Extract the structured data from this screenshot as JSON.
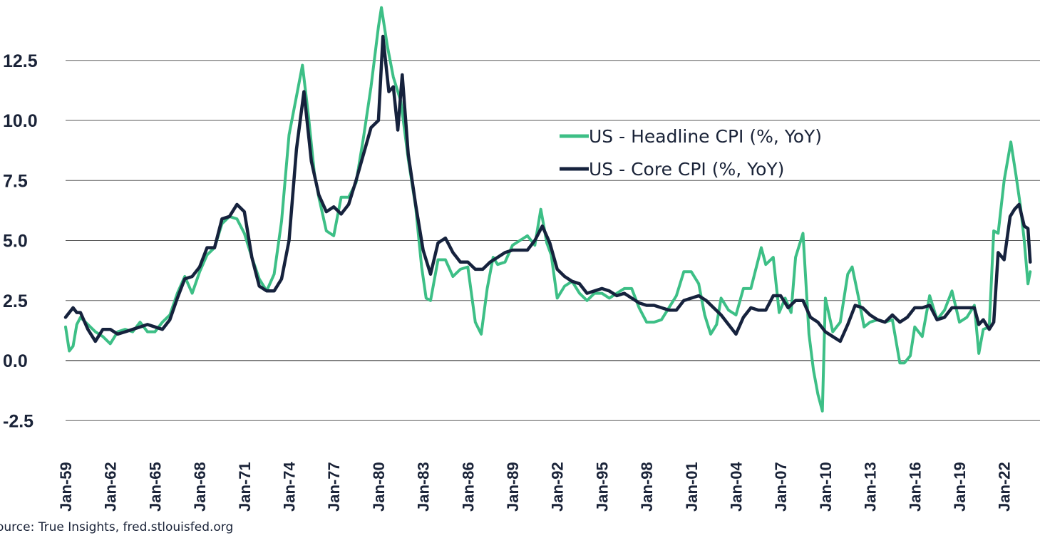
{
  "source_note": "ource: True Insights, fred.stlouisfed.org",
  "colors": {
    "headline": "#3dbf86",
    "core": "#16223d",
    "grid": "#5a5a5a",
    "text": "#1a2338"
  },
  "chart_data": {
    "type": "line",
    "title": "",
    "xlabel": "",
    "ylabel": "",
    "ylim": [
      -2.5,
      14.5
    ],
    "xlim": [
      1959.0,
      2023.75
    ],
    "y_ticks": [
      "-2.5",
      "0.0",
      "2.5",
      "5.0",
      "7.5",
      "10.0",
      "12.5"
    ],
    "y_tick_values": [
      -2.5,
      0,
      2.5,
      5,
      7.5,
      10,
      12.5
    ],
    "x_ticks": [
      "Jan-59",
      "Jan-62",
      "Jan-65",
      "Jan-68",
      "Jan-71",
      "Jan-74",
      "Jan-77",
      "Jan-80",
      "Jan-83",
      "Jan-86",
      "Jan-89",
      "Jan-92",
      "Jan-95",
      "Jan-98",
      "Jan-01",
      "Jan-04",
      "Jan-07",
      "Jan-10",
      "Jan-13",
      "Jan-16",
      "Jan-19",
      "Jan-22"
    ],
    "x_tick_values": [
      1959,
      1962,
      1965,
      1968,
      1971,
      1974,
      1977,
      1980,
      1983,
      1986,
      1989,
      1992,
      1995,
      1998,
      2001,
      2004,
      2007,
      2010,
      2013,
      2016,
      2019,
      2022
    ],
    "grid": "horizontal",
    "legend": "upper-right",
    "series": [
      {
        "name": "US - Headline CPI (%, YoY)",
        "x": [
          1959.0,
          1959.25,
          1959.5,
          1959.75,
          1960.0,
          1960.5,
          1961.0,
          1961.5,
          1962.0,
          1962.5,
          1963.0,
          1963.5,
          1964.0,
          1964.5,
          1965.0,
          1965.5,
          1966.0,
          1966.5,
          1967.0,
          1967.5,
          1968.0,
          1968.5,
          1969.0,
          1969.5,
          1970.0,
          1970.5,
          1971.0,
          1971.5,
          1972.0,
          1972.5,
          1973.0,
          1973.5,
          1974.0,
          1974.5,
          1974.9,
          1975.3,
          1975.7,
          1976.0,
          1976.5,
          1977.0,
          1977.5,
          1978.0,
          1978.5,
          1979.0,
          1979.5,
          1980.0,
          1980.2,
          1980.6,
          1981.0,
          1981.5,
          1982.0,
          1982.5,
          1982.9,
          1983.2,
          1983.5,
          1984.0,
          1984.5,
          1985.0,
          1985.5,
          1986.0,
          1986.5,
          1986.9,
          1987.3,
          1987.7,
          1988.0,
          1988.5,
          1989.0,
          1989.5,
          1990.0,
          1990.5,
          1990.9,
          1991.3,
          1991.6,
          1992.0,
          1992.5,
          1993.0,
          1993.5,
          1994.0,
          1994.5,
          1995.0,
          1995.5,
          1996.0,
          1996.5,
          1997.0,
          1997.5,
          1998.0,
          1998.5,
          1999.0,
          1999.5,
          2000.0,
          2000.5,
          2001.0,
          2001.5,
          2001.9,
          2002.3,
          2002.7,
          2003.0,
          2003.5,
          2004.0,
          2004.5,
          2005.0,
          2005.7,
          2006.0,
          2006.5,
          2006.9,
          2007.3,
          2007.7,
          2008.0,
          2008.5,
          2008.9,
          2009.2,
          2009.5,
          2009.8,
          2010.0,
          2010.5,
          2011.0,
          2011.5,
          2011.8,
          2012.2,
          2012.6,
          2013.0,
          2013.5,
          2014.0,
          2014.5,
          2015.0,
          2015.3,
          2015.7,
          2016.0,
          2016.5,
          2017.0,
          2017.5,
          2018.0,
          2018.5,
          2019.0,
          2019.5,
          2020.0,
          2020.3,
          2020.6,
          2021.0,
          2021.3,
          2021.6,
          2022.0,
          2022.45,
          2022.8,
          2023.1,
          2023.35,
          2023.6,
          2023.75
        ],
        "values": [
          1.4,
          0.4,
          0.6,
          1.5,
          1.8,
          1.5,
          1.2,
          1.0,
          0.7,
          1.2,
          1.3,
          1.2,
          1.6,
          1.2,
          1.2,
          1.6,
          1.9,
          2.8,
          3.5,
          2.8,
          3.7,
          4.4,
          4.7,
          5.7,
          6.0,
          5.9,
          5.3,
          4.3,
          3.4,
          2.9,
          3.6,
          5.8,
          9.4,
          11.0,
          12.3,
          10.2,
          7.8,
          6.8,
          5.4,
          5.2,
          6.8,
          6.8,
          7.4,
          9.3,
          11.4,
          13.9,
          14.7,
          13.1,
          11.8,
          10.8,
          8.4,
          6.4,
          3.9,
          2.6,
          2.5,
          4.2,
          4.2,
          3.5,
          3.8,
          3.9,
          1.6,
          1.1,
          3.0,
          4.3,
          4.0,
          4.1,
          4.8,
          5.0,
          5.2,
          4.8,
          6.3,
          4.9,
          4.4,
          2.6,
          3.1,
          3.3,
          2.8,
          2.5,
          2.8,
          2.8,
          2.6,
          2.8,
          3.0,
          3.0,
          2.2,
          1.6,
          1.6,
          1.7,
          2.2,
          2.7,
          3.7,
          3.7,
          3.2,
          1.9,
          1.1,
          1.5,
          2.6,
          2.1,
          1.9,
          3.0,
          3.0,
          4.7,
          4.0,
          4.3,
          2.0,
          2.6,
          2.0,
          4.3,
          5.3,
          1.1,
          -0.4,
          -1.4,
          -2.1,
          2.6,
          1.2,
          1.6,
          3.6,
          3.9,
          2.7,
          1.4,
          1.6,
          1.7,
          1.6,
          1.7,
          -0.1,
          -0.1,
          0.2,
          1.4,
          1.0,
          2.7,
          1.7,
          2.1,
          2.9,
          1.6,
          1.8,
          2.3,
          0.3,
          1.3,
          1.4,
          5.4,
          5.3,
          7.5,
          9.1,
          7.7,
          6.4,
          5.0,
          3.2,
          3.7
        ]
      },
      {
        "name": "US - Core CPI (%, YoY)",
        "x": [
          1959.0,
          1959.25,
          1959.5,
          1959.75,
          1960.0,
          1960.5,
          1961.0,
          1961.5,
          1962.0,
          1962.5,
          1963.0,
          1963.5,
          1964.0,
          1964.5,
          1965.0,
          1965.5,
          1966.0,
          1966.5,
          1967.0,
          1967.5,
          1968.0,
          1968.5,
          1969.0,
          1969.5,
          1970.0,
          1970.5,
          1971.0,
          1971.5,
          1972.0,
          1972.5,
          1973.0,
          1973.5,
          1974.0,
          1974.5,
          1975.0,
          1975.5,
          1976.0,
          1976.5,
          1977.0,
          1977.5,
          1978.0,
          1978.5,
          1979.0,
          1979.5,
          1980.0,
          1980.3,
          1980.7,
          1981.0,
          1981.3,
          1981.6,
          1982.0,
          1982.5,
          1983.0,
          1983.5,
          1984.0,
          1984.5,
          1985.0,
          1985.5,
          1986.0,
          1986.5,
          1987.0,
          1987.5,
          1988.0,
          1988.5,
          1989.0,
          1989.5,
          1990.0,
          1990.5,
          1991.0,
          1991.5,
          1992.0,
          1992.5,
          1993.0,
          1993.5,
          1994.0,
          1994.5,
          1995.0,
          1995.5,
          1996.0,
          1996.5,
          1997.0,
          1997.5,
          1998.0,
          1998.5,
          1999.0,
          1999.5,
          2000.0,
          2000.5,
          2001.0,
          2001.5,
          2002.0,
          2002.5,
          2003.0,
          2003.5,
          2004.0,
          2004.5,
          2005.0,
          2005.5,
          2006.0,
          2006.5,
          2007.0,
          2007.5,
          2008.0,
          2008.5,
          2009.0,
          2009.5,
          2010.0,
          2010.5,
          2011.0,
          2011.5,
          2012.0,
          2012.5,
          2013.0,
          2013.5,
          2014.0,
          2014.5,
          2015.0,
          2015.5,
          2016.0,
          2016.5,
          2017.0,
          2017.5,
          2018.0,
          2018.5,
          2019.0,
          2019.5,
          2020.0,
          2020.3,
          2020.6,
          2021.0,
          2021.3,
          2021.6,
          2022.0,
          2022.4,
          2022.7,
          2023.0,
          2023.35,
          2023.6,
          2023.75
        ],
        "values": [
          1.8,
          2.0,
          2.2,
          2.0,
          2.0,
          1.3,
          0.8,
          1.3,
          1.3,
          1.1,
          1.2,
          1.3,
          1.4,
          1.5,
          1.4,
          1.3,
          1.7,
          2.6,
          3.4,
          3.5,
          3.9,
          4.7,
          4.7,
          5.9,
          6.0,
          6.5,
          6.2,
          4.3,
          3.1,
          2.9,
          2.9,
          3.4,
          5.0,
          8.8,
          11.2,
          8.3,
          6.9,
          6.2,
          6.4,
          6.1,
          6.5,
          7.5,
          8.6,
          9.7,
          10.0,
          13.5,
          11.2,
          11.4,
          9.6,
          11.9,
          8.6,
          6.5,
          4.6,
          3.6,
          4.9,
          5.1,
          4.5,
          4.1,
          4.1,
          3.8,
          3.8,
          4.1,
          4.3,
          4.5,
          4.6,
          4.6,
          4.6,
          5.0,
          5.6,
          4.9,
          3.8,
          3.5,
          3.3,
          3.2,
          2.8,
          2.9,
          3.0,
          2.9,
          2.7,
          2.8,
          2.6,
          2.4,
          2.3,
          2.3,
          2.2,
          2.1,
          2.1,
          2.5,
          2.6,
          2.7,
          2.5,
          2.2,
          1.9,
          1.5,
          1.1,
          1.8,
          2.2,
          2.1,
          2.1,
          2.7,
          2.7,
          2.2,
          2.5,
          2.5,
          1.8,
          1.6,
          1.2,
          1.0,
          0.8,
          1.5,
          2.3,
          2.2,
          1.9,
          1.7,
          1.6,
          1.9,
          1.6,
          1.8,
          2.2,
          2.2,
          2.3,
          1.7,
          1.8,
          2.2,
          2.2,
          2.2,
          2.2,
          1.5,
          1.7,
          1.3,
          1.6,
          4.5,
          4.2,
          6.0,
          6.3,
          6.5,
          5.6,
          5.5,
          4.1
        ]
      }
    ]
  }
}
